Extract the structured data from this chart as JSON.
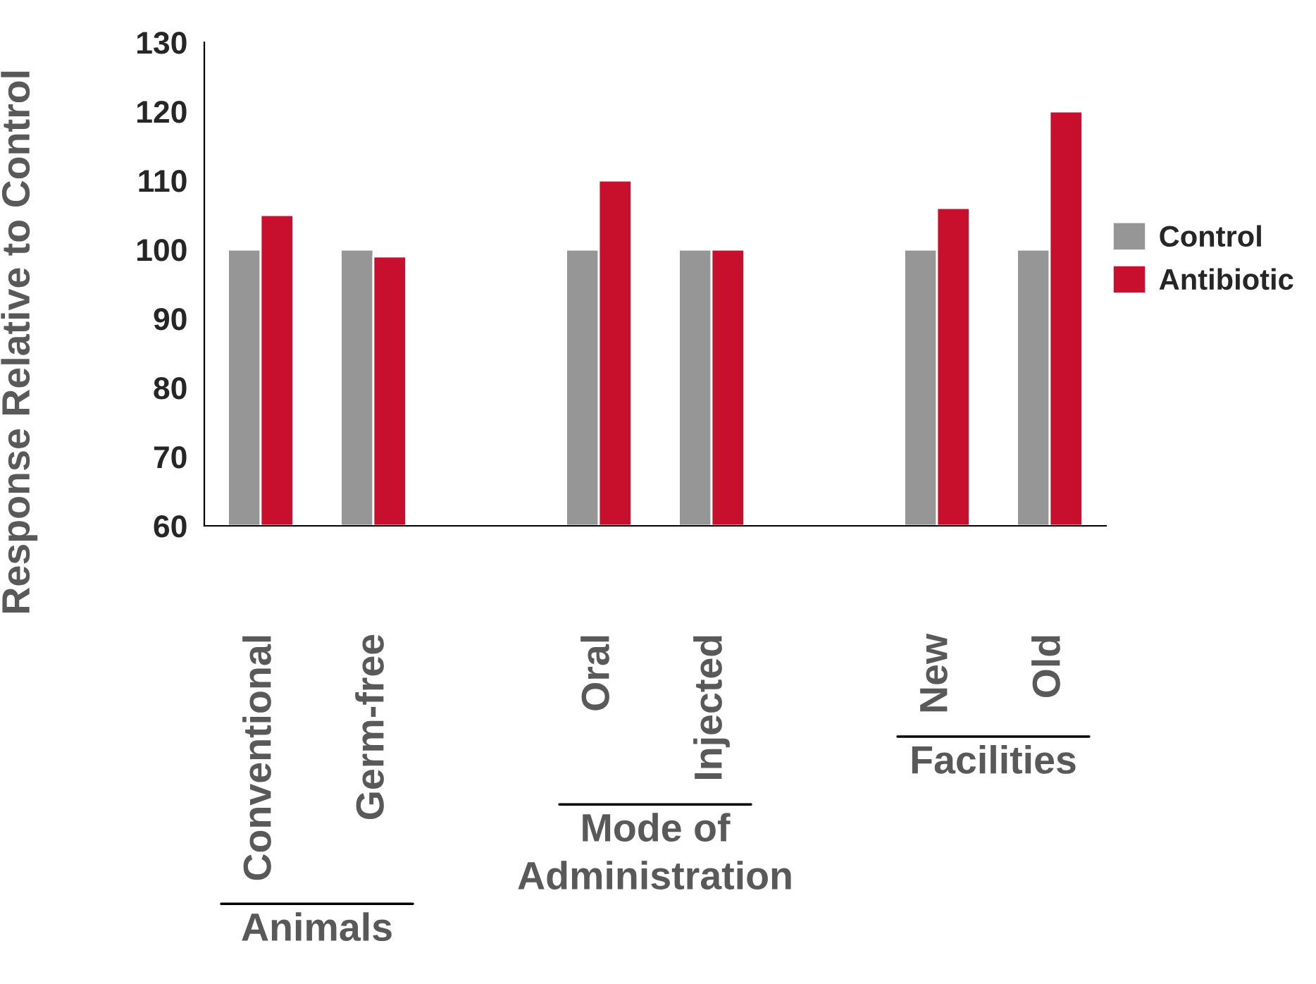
{
  "chart_data": {
    "type": "bar",
    "ylabel": "Response Relative to Control",
    "categories": [
      "Conventional",
      "Germ-free",
      null,
      "Oral",
      "Injected",
      null,
      "New",
      "Old"
    ],
    "series": [
      {
        "name": "Control",
        "color": "#969696",
        "values": [
          100,
          100,
          null,
          100,
          100,
          null,
          100,
          100
        ]
      },
      {
        "name": "Antibiotic",
        "color": "#c8102e",
        "values": [
          105,
          99,
          null,
          110,
          100,
          null,
          106,
          120
        ]
      }
    ],
    "ylim": [
      60,
      130
    ],
    "yticks": [
      60,
      70,
      80,
      90,
      100,
      110,
      120,
      130
    ],
    "grid": false,
    "legend": "right",
    "annotations": [
      "Animals",
      "Mode of\nAdministration",
      "Facilities"
    ]
  }
}
